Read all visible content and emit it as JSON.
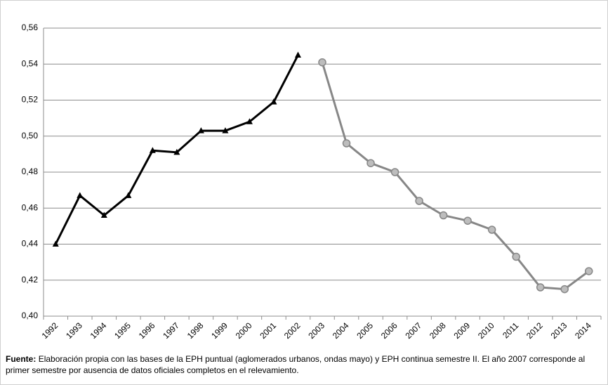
{
  "chart_data": {
    "type": "line",
    "categories": [
      "1992",
      "1993",
      "1994",
      "1995",
      "1996",
      "1997",
      "1998",
      "1999",
      "2000",
      "2001",
      "2002",
      "2003",
      "2004",
      "2005",
      "2006",
      "2007",
      "2008",
      "2009",
      "2010",
      "2011",
      "2012",
      "2013",
      "2014"
    ],
    "series": [
      {
        "color": "#000000",
        "marker": "triangle",
        "values": [
          0.44,
          0.467,
          0.456,
          0.467,
          0.492,
          0.491,
          0.503,
          0.503,
          0.508,
          0.519,
          0.545,
          null,
          null,
          null,
          null,
          null,
          null,
          null,
          null,
          null,
          null,
          null,
          null
        ]
      },
      {
        "color": "#878787",
        "marker": "circle",
        "values": [
          null,
          null,
          null,
          null,
          null,
          null,
          null,
          null,
          null,
          null,
          null,
          0.541,
          0.496,
          0.485,
          0.48,
          0.464,
          0.456,
          0.453,
          0.448,
          0.433,
          0.416,
          0.415,
          0.425
        ]
      }
    ],
    "ylim": [
      0.4,
      0.56
    ],
    "yticks": [
      {
        "value": 0.4,
        "label": "0,40"
      },
      {
        "value": 0.42,
        "label": "0,42"
      },
      {
        "value": 0.44,
        "label": "0,44"
      },
      {
        "value": 0.46,
        "label": "0,46"
      },
      {
        "value": 0.48,
        "label": "0,48"
      },
      {
        "value": 0.5,
        "label": "0,50"
      },
      {
        "value": 0.52,
        "label": "0,52"
      },
      {
        "value": 0.54,
        "label": "0,54"
      },
      {
        "value": 0.56,
        "label": "0,56"
      }
    ],
    "grid": true,
    "source_label": "Fuente:",
    "source_text": "Elaboración propia con las bases de la EPH puntual (aglomerados urbanos, ondas mayo)  y EPH  continua semestre II. El año 2007 corresponde al primer semestre por ausencia de datos oficiales completos en el relevamiento."
  }
}
